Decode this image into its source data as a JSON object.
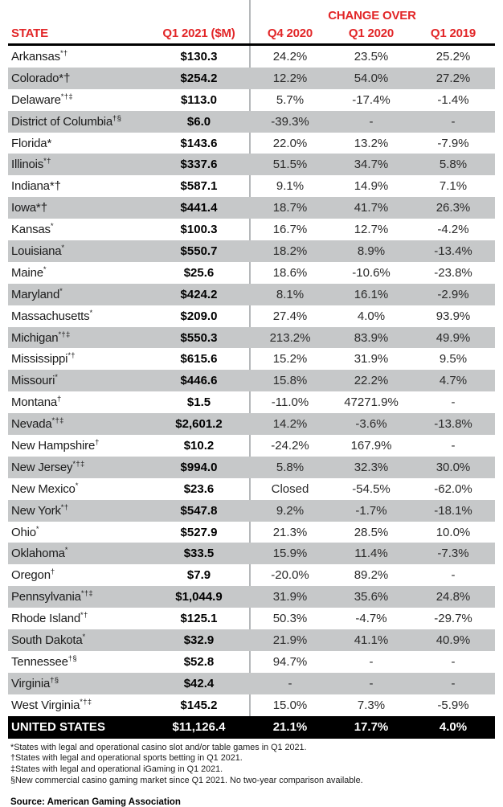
{
  "table": {
    "change_over_label": "CHANGE OVER",
    "columns": [
      "STATE",
      "Q1 2021 ($M)",
      "Q4 2020",
      "Q1 2020",
      "Q1 2019"
    ],
    "rows": [
      {
        "state": "Arkansas",
        "marks": "*†",
        "value": "$130.3",
        "q4_2020": "24.2%",
        "q1_2020": "23.5%",
        "q1_2019": "25.2%"
      },
      {
        "state": "Colorado",
        "marks": "*†",
        "marks_inline": true,
        "value": "$254.2",
        "q4_2020": "12.2%",
        "q1_2020": "54.0%",
        "q1_2019": "27.2%"
      },
      {
        "state": "Delaware",
        "marks": "*†‡",
        "value": "$113.0",
        "q4_2020": "5.7%",
        "q1_2020": "-17.4%",
        "q1_2019": "-1.4%"
      },
      {
        "state": "District of Columbia",
        "marks": "†§",
        "value": "$6.0",
        "q4_2020": "-39.3%",
        "q1_2020": "-",
        "q1_2019": "-"
      },
      {
        "state": "Florida",
        "marks": "*",
        "marks_inline": true,
        "value": "$143.6",
        "q4_2020": "22.0%",
        "q1_2020": "13.2%",
        "q1_2019": "-7.9%"
      },
      {
        "state": "Illinois",
        "marks": "*†",
        "value": "$337.6",
        "q4_2020": "51.5%",
        "q1_2020": "34.7%",
        "q1_2019": "5.8%"
      },
      {
        "state": "Indiana",
        "marks": "*†",
        "marks_inline": true,
        "value": "$587.1",
        "q4_2020": "9.1%",
        "q1_2020": "14.9%",
        "q1_2019": "7.1%"
      },
      {
        "state": "Iowa",
        "marks": "*†",
        "marks_inline": true,
        "value": "$441.4",
        "q4_2020": "18.7%",
        "q1_2020": "41.7%",
        "q1_2019": "26.3%"
      },
      {
        "state": "Kansas",
        "marks": "*",
        "value": "$100.3",
        "q4_2020": "16.7%",
        "q1_2020": "12.7%",
        "q1_2019": "-4.2%"
      },
      {
        "state": "Louisiana",
        "marks": "*",
        "value": "$550.7",
        "q4_2020": "18.2%",
        "q1_2020": "8.9%",
        "q1_2019": "-13.4%"
      },
      {
        "state": "Maine",
        "marks": "*",
        "value": "$25.6",
        "q4_2020": "18.6%",
        "q1_2020": "-10.6%",
        "q1_2019": "-23.8%"
      },
      {
        "state": "Maryland",
        "marks": "*",
        "value": "$424.2",
        "q4_2020": "8.1%",
        "q1_2020": "16.1%",
        "q1_2019": "-2.9%"
      },
      {
        "state": "Massachusetts",
        "marks": "*",
        "value": "$209.0",
        "q4_2020": "27.4%",
        "q1_2020": "4.0%",
        "q1_2019": "93.9%"
      },
      {
        "state": "Michigan",
        "marks": "*†‡",
        "value": "$550.3",
        "q4_2020": "213.2%",
        "q1_2020": "83.9%",
        "q1_2019": "49.9%"
      },
      {
        "state": "Mississippi",
        "marks": "*†",
        "value": "$615.6",
        "q4_2020": "15.2%",
        "q1_2020": "31.9%",
        "q1_2019": "9.5%"
      },
      {
        "state": "Missouri",
        "marks": "*",
        "value": "$446.6",
        "q4_2020": "15.8%",
        "q1_2020": "22.2%",
        "q1_2019": "4.7%"
      },
      {
        "state": "Montana",
        "marks": "†",
        "value": "$1.5",
        "q4_2020": "-11.0%",
        "q1_2020": "47271.9%",
        "q1_2019": "-"
      },
      {
        "state": "Nevada",
        "marks": "*†‡",
        "value": "$2,601.2",
        "q4_2020": "14.2%",
        "q1_2020": "-3.6%",
        "q1_2019": "-13.8%"
      },
      {
        "state": "New Hampshire",
        "marks": "†",
        "value": "$10.2",
        "q4_2020": "-24.2%",
        "q1_2020": "167.9%",
        "q1_2019": "-"
      },
      {
        "state": "New Jersey",
        "marks": "*†‡",
        "value": "$994.0",
        "q4_2020": "5.8%",
        "q1_2020": "32.3%",
        "q1_2019": "30.0%"
      },
      {
        "state": "New Mexico",
        "marks": "*",
        "value": "$23.6",
        "q4_2020": "Closed",
        "q1_2020": "-54.5%",
        "q1_2019": "-62.0%"
      },
      {
        "state": "New York",
        "marks": "*†",
        "value": "$547.8",
        "q4_2020": "9.2%",
        "q1_2020": "-1.7%",
        "q1_2019": "-18.1%"
      },
      {
        "state": "Ohio",
        "marks": "*",
        "value": "$527.9",
        "q4_2020": "21.3%",
        "q1_2020": "28.5%",
        "q1_2019": "10.0%"
      },
      {
        "state": "Oklahoma",
        "marks": "*",
        "value": "$33.5",
        "q4_2020": "15.9%",
        "q1_2020": "11.4%",
        "q1_2019": "-7.3%"
      },
      {
        "state": "Oregon",
        "marks": "†",
        "value": "$7.9",
        "q4_2020": "-20.0%",
        "q1_2020": "89.2%",
        "q1_2019": "-"
      },
      {
        "state": "Pennsylvania",
        "marks": "*†‡",
        "value": "$1,044.9",
        "q4_2020": "31.9%",
        "q1_2020": "35.6%",
        "q1_2019": "24.8%"
      },
      {
        "state": "Rhode Island",
        "marks": "*†",
        "value": "$125.1",
        "q4_2020": "50.3%",
        "q1_2020": "-4.7%",
        "q1_2019": "-29.7%"
      },
      {
        "state": "South Dakota",
        "marks": "*",
        "value": "$32.9",
        "q4_2020": "21.9%",
        "q1_2020": "41.1%",
        "q1_2019": "40.9%"
      },
      {
        "state": "Tennessee",
        "marks": "†§",
        "value": "$52.8",
        "q4_2020": "94.7%",
        "q1_2020": "-",
        "q1_2019": "-"
      },
      {
        "state": "Virginia",
        "marks": "†§",
        "value": "$42.4",
        "q4_2020": "-",
        "q1_2020": "-",
        "q1_2019": "-"
      },
      {
        "state": "West Virginia",
        "marks": "*†‡",
        "value": "$145.2",
        "q4_2020": "15.0%",
        "q1_2020": "7.3%",
        "q1_2019": "-5.9%"
      }
    ],
    "total_row": {
      "state": "UNITED STATES",
      "value": "$11,126.4",
      "q4_2020": "21.1%",
      "q1_2020": "17.7%",
      "q1_2019": "4.0%"
    }
  },
  "footnotes": [
    "*States with legal and operational casino slot and/or table games in Q1 2021.",
    "†States with legal and operational sports betting in Q1 2021.",
    "‡States with legal and operational iGaming in Q1 2021.",
    "§New commercial casino gaming market since Q1 2021. No two-year comparison available."
  ],
  "source": "Source: American Gaming Association",
  "colors": {
    "accent_red": "#E22628",
    "stripe_gray": "#C6C8C9",
    "divider_gray": "#B5B8BA",
    "total_bg": "#000000"
  }
}
